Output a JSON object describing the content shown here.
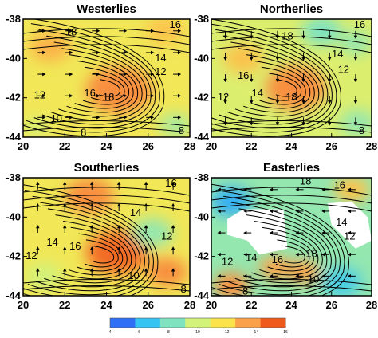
{
  "chart_data": {
    "type": "heatmap",
    "colorbar": {
      "min": 4,
      "max": 16,
      "ticks": [
        "4",
        "6",
        "8",
        "10",
        "12",
        "14",
        "16"
      ],
      "colors": [
        "#2e6ff5",
        "#36c4f2",
        "#7fe3c0",
        "#d2f27a",
        "#fbe34b",
        "#fba14a",
        "#ef5a1c"
      ]
    },
    "panels": [
      {
        "title": "Westerlies",
        "xlim": [
          20,
          28
        ],
        "ylim": [
          -44,
          -38
        ],
        "xticks": [
          "20",
          "22",
          "24",
          "26",
          "28"
        ],
        "yticks": [
          "-38",
          "-40",
          "-42",
          "-44"
        ],
        "background_level": 11.5,
        "blobs": [
          {
            "x": 24.6,
            "y": -41.6,
            "r": 1.6,
            "level": 14.5
          },
          {
            "x": 21.3,
            "y": -39.4,
            "r": 1.0,
            "level": 13.5
          },
          {
            "x": 26.8,
            "y": -38.6,
            "r": 0.9,
            "level": 13.0
          },
          {
            "x": 27.3,
            "y": -43.4,
            "r": 0.8,
            "level": 9.0
          },
          {
            "x": 20.6,
            "y": -43.5,
            "r": 0.6,
            "level": 10.0
          }
        ],
        "contour_labels": [
          {
            "text": "16",
            "x": 27.3,
            "y": -38.3
          },
          {
            "text": "18",
            "x": 22.3,
            "y": -38.7
          },
          {
            "text": "14",
            "x": 26.6,
            "y": -40.0
          },
          {
            "text": "12",
            "x": 26.6,
            "y": -40.7
          },
          {
            "text": "12",
            "x": 20.8,
            "y": -41.9
          },
          {
            "text": "16",
            "x": 23.2,
            "y": -41.8
          },
          {
            "text": "18",
            "x": 24.1,
            "y": -42.0
          },
          {
            "text": "10",
            "x": 21.6,
            "y": -43.1
          },
          {
            "text": "8",
            "x": 22.9,
            "y": -43.8
          },
          {
            "text": "8",
            "x": 27.6,
            "y": -43.7
          }
        ],
        "vortex": {
          "x": 24.3,
          "y": -41.6
        }
      },
      {
        "title": "Northerlies",
        "xlim": [
          20,
          28
        ],
        "ylim": [
          -44,
          -38
        ],
        "xticks": [
          "20",
          "22",
          "24",
          "26",
          "28"
        ],
        "yticks": [
          "-38",
          "-40",
          "-42",
          "-44"
        ],
        "background_level": 10.5,
        "blobs": [
          {
            "x": 24.2,
            "y": -41.5,
            "r": 1.5,
            "level": 14.5
          },
          {
            "x": 21.6,
            "y": -40.0,
            "r": 1.0,
            "level": 13.0
          },
          {
            "x": 25.5,
            "y": -38.6,
            "r": 1.0,
            "level": 8.0
          },
          {
            "x": 27.2,
            "y": -39.2,
            "r": 0.8,
            "level": 8.5
          },
          {
            "x": 27.3,
            "y": -43.3,
            "r": 0.9,
            "level": 8.5
          }
        ],
        "contour_labels": [
          {
            "text": "16",
            "x": 27.4,
            "y": -38.3
          },
          {
            "text": "18",
            "x": 23.8,
            "y": -38.9
          },
          {
            "text": "14",
            "x": 26.3,
            "y": -39.8
          },
          {
            "text": "12",
            "x": 26.6,
            "y": -40.6
          },
          {
            "text": "16",
            "x": 21.6,
            "y": -40.9
          },
          {
            "text": "12",
            "x": 20.6,
            "y": -42.0
          },
          {
            "text": "14",
            "x": 22.3,
            "y": -41.8
          },
          {
            "text": "18",
            "x": 24.0,
            "y": -42.0
          },
          {
            "text": "8",
            "x": 27.5,
            "y": -43.7
          }
        ],
        "vortex": {
          "x": 23.9,
          "y": -41.6
        }
      },
      {
        "title": "Southerlies",
        "xlim": [
          20,
          28
        ],
        "ylim": [
          -44,
          -38
        ],
        "xticks": [
          "20",
          "22",
          "24",
          "26",
          "28"
        ],
        "yticks": [
          "-38",
          "-40",
          "-42",
          "-44"
        ],
        "background_level": 11.5,
        "blobs": [
          {
            "x": 24.5,
            "y": -41.8,
            "r": 1.5,
            "level": 15.5
          },
          {
            "x": 23.2,
            "y": -38.9,
            "r": 1.2,
            "level": 14.5
          },
          {
            "x": 26.2,
            "y": -40.8,
            "r": 1.0,
            "level": 8.5
          },
          {
            "x": 26.9,
            "y": -42.8,
            "r": 1.0,
            "level": 14.5
          },
          {
            "x": 21.0,
            "y": -43.0,
            "r": 0.9,
            "level": 10.0
          }
        ],
        "contour_labels": [
          {
            "text": "16",
            "x": 27.1,
            "y": -38.3
          },
          {
            "text": "14",
            "x": 25.4,
            "y": -39.8
          },
          {
            "text": "12",
            "x": 26.9,
            "y": -41.0
          },
          {
            "text": "14",
            "x": 21.4,
            "y": -41.3
          },
          {
            "text": "16",
            "x": 22.5,
            "y": -41.5
          },
          {
            "text": "12",
            "x": 20.4,
            "y": -42.0
          },
          {
            "text": "10",
            "x": 25.3,
            "y": -43.0
          },
          {
            "text": "8",
            "x": 27.7,
            "y": -43.7
          }
        ],
        "vortex": {
          "x": 24.0,
          "y": -42.0
        }
      },
      {
        "title": "Easterlies",
        "xlim": [
          20,
          28
        ],
        "ylim": [
          -44,
          -38
        ],
        "xticks": [
          "20",
          "22",
          "24",
          "26",
          "28"
        ],
        "yticks": [
          "-38",
          "-40",
          "-42",
          "-44"
        ],
        "background_level": 8.5,
        "blobs": [
          {
            "x": 21.0,
            "y": -39.2,
            "r": 1.0,
            "level": 5.5
          },
          {
            "x": 23.2,
            "y": -42.6,
            "r": 0.8,
            "level": 14.0
          },
          {
            "x": 24.6,
            "y": -42.8,
            "r": 0.8,
            "level": 14.0
          },
          {
            "x": 21.0,
            "y": -43.5,
            "r": 0.9,
            "level": 14.5
          },
          {
            "x": 26.5,
            "y": -43.3,
            "r": 1.0,
            "level": 6.5
          },
          {
            "x": 27.0,
            "y": -38.6,
            "r": 0.9,
            "level": 13.0
          }
        ],
        "contour_labels": [
          {
            "text": "18",
            "x": 24.7,
            "y": -38.2
          },
          {
            "text": "16",
            "x": 26.4,
            "y": -38.4
          },
          {
            "text": "14",
            "x": 26.5,
            "y": -40.3
          },
          {
            "text": "12",
            "x": 26.9,
            "y": -41.0
          },
          {
            "text": "12",
            "x": 20.8,
            "y": -42.3
          },
          {
            "text": "14",
            "x": 22.0,
            "y": -42.1
          },
          {
            "text": "16",
            "x": 23.3,
            "y": -42.2
          },
          {
            "text": "18",
            "x": 25.0,
            "y": -41.9
          },
          {
            "text": "10",
            "x": 25.1,
            "y": -43.2
          },
          {
            "text": "8",
            "x": 21.7,
            "y": -43.8
          }
        ],
        "vortex": {
          "x": 24.3,
          "y": -42.0
        }
      }
    ]
  }
}
